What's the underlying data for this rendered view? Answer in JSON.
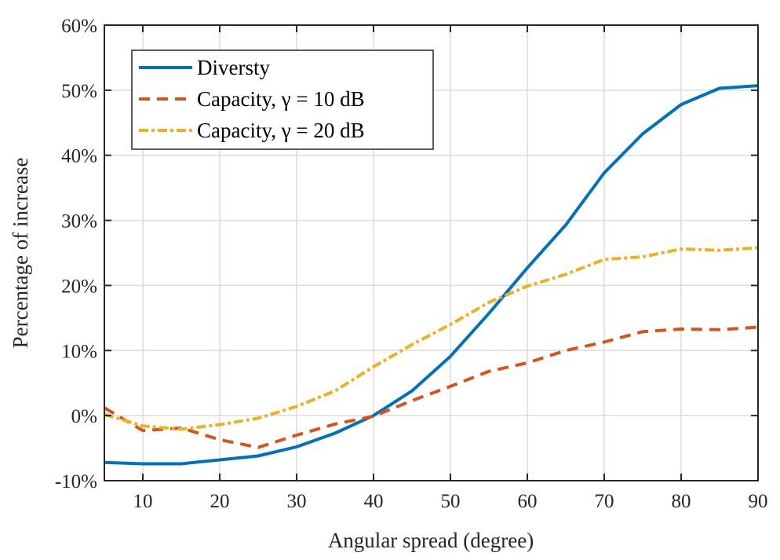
{
  "chart_data": {
    "type": "line",
    "title": "",
    "xlabel": "Angular spread (degree)",
    "ylabel": "Percentage of increase",
    "xlim": [
      5,
      90
    ],
    "ylim": [
      -10,
      60
    ],
    "xticks": [
      10,
      20,
      30,
      40,
      50,
      60,
      70,
      80,
      90
    ],
    "xtick_labels": [
      "10",
      "20",
      "30",
      "40",
      "50",
      "60",
      "70",
      "80",
      "90"
    ],
    "yticks": [
      -10,
      0,
      10,
      20,
      30,
      40,
      50,
      60
    ],
    "ytick_labels": [
      "-10%",
      "0%",
      "10%",
      "20%",
      "30%",
      "40%",
      "50%",
      "60%"
    ],
    "grid": true,
    "legend_position": "top-left",
    "x": [
      5,
      10,
      15,
      20,
      25,
      30,
      35,
      40,
      45,
      50,
      55,
      60,
      65,
      70,
      75,
      80,
      85,
      90
    ],
    "series": [
      {
        "name": "Diversty",
        "legend_label": "Diversty",
        "color": "#0072BD",
        "style": "solid",
        "values": [
          -7.2,
          -7.4,
          -7.4,
          -6.8,
          -6.2,
          -4.8,
          -2.7,
          0.0,
          3.8,
          9.1,
          15.7,
          22.7,
          29.3,
          37.3,
          43.3,
          47.8,
          50.3,
          50.7
        ]
      },
      {
        "name": "Capacity, γ = 10 dB",
        "legend_label": "Capacity, γ = 10 dB",
        "color": "#D95319",
        "style": "dashed",
        "values": [
          1.2,
          -2.3,
          -1.9,
          -3.7,
          -4.9,
          -3.0,
          -1.3,
          -0.1,
          2.3,
          4.5,
          6.8,
          8.1,
          10.0,
          11.3,
          12.9,
          13.3,
          13.2,
          13.6
        ]
      },
      {
        "name": "Capacity, γ = 20 dB",
        "legend_label": "Capacity, γ = 20 dB",
        "color": "#EDB120",
        "style": "dashdot",
        "values": [
          0.2,
          -1.6,
          -2.1,
          -1.4,
          -0.4,
          1.4,
          3.8,
          7.5,
          10.9,
          14.0,
          17.4,
          19.9,
          21.7,
          24.0,
          24.4,
          25.6,
          25.4,
          25.8
        ]
      }
    ]
  }
}
